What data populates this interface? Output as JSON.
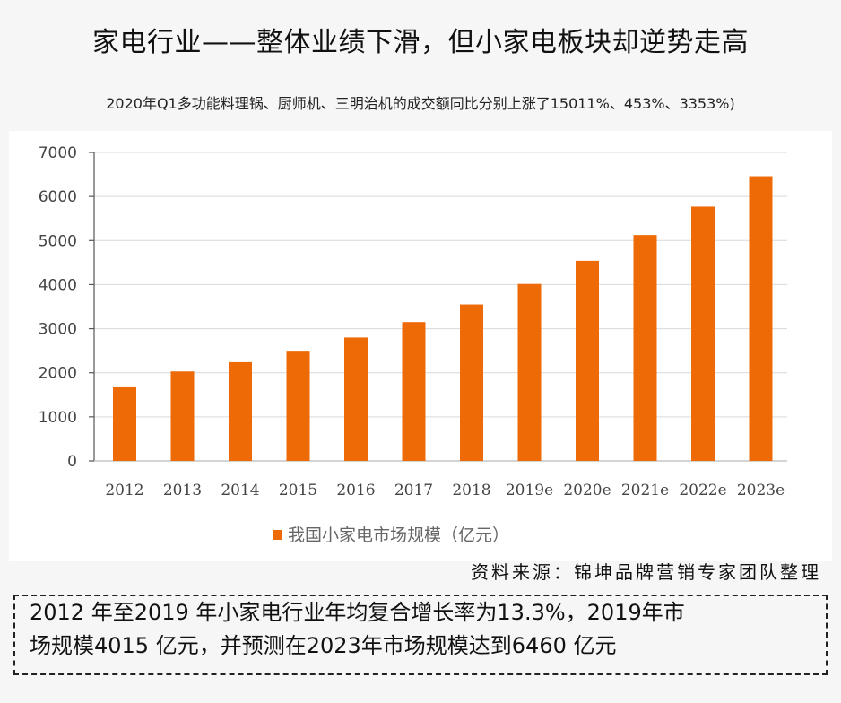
{
  "title": "家电行业——整体业绩下滑，但小家电板块却逆势走高",
  "subtitle": "2020年Q1多功能料理锅、厨师机、三明治机的成交额同比分别上涨了15011%、453%、3353%)",
  "source": "资料来源：锦坤品牌营销专家团队整理",
  "note": {
    "line1": "2012 年至2019 年小家电行业年均复合增长率为13.3%，2019年市",
    "line2": "场规模4015 亿元，并预测在2023年市场规模达到6460 亿元"
  },
  "chart_data": {
    "type": "bar",
    "categories": [
      "2012",
      "2013",
      "2014",
      "2015",
      "2016",
      "2017",
      "2018",
      "2019e",
      "2020e",
      "2021e",
      "2022e",
      "2023e"
    ],
    "series": [
      {
        "name": "我国小家电市场规模（亿元）",
        "values": [
          1670,
          2030,
          2240,
          2500,
          2800,
          3150,
          3550,
          4015,
          4540,
          5125,
          5770,
          6460
        ],
        "color": "#ee6a06"
      }
    ],
    "yticks": [
      "0",
      "1000",
      "2000",
      "3000",
      "4000",
      "5000",
      "6000",
      "7000"
    ],
    "ylim": [
      0,
      7000
    ],
    "grid": true,
    "legend": "bottom"
  }
}
